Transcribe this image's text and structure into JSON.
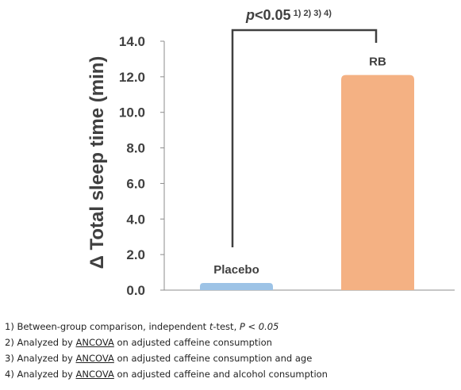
{
  "chart_data": {
    "type": "bar",
    "categories": [
      "Placebo",
      "RB"
    ],
    "values": [
      0.4,
      12.1
    ],
    "colors": [
      "#9dc3e6",
      "#f4b183"
    ],
    "ylabel": "Δ Total sleep time (min)",
    "ylim": [
      0.0,
      14.0
    ],
    "yticks": [
      "0.0",
      "2.0",
      "4.0",
      "6.0",
      "8.0",
      "10.0",
      "12.0",
      "14.0"
    ],
    "grid": false,
    "significance": {
      "prefix": "p",
      "text": "<0.05",
      "superscript": " 1) 2) 3) 4)"
    }
  },
  "footnotes": [
    {
      "num": "1)",
      "text1": "Between-group comparison, independent ",
      "t": "t",
      "text2": "-test, ",
      "pval": "P < 0.05"
    },
    {
      "num": "2)",
      "pre": "Analyzed by ",
      "abbr": "ANCOVA",
      "post": " on adjusted caffeine consumption"
    },
    {
      "num": "3)",
      "pre": "Analyzed by ",
      "abbr": "ANCOVA",
      "post": " on adjusted caffeine consumption and age"
    },
    {
      "num": "4)",
      "pre": "Analyzed by ",
      "abbr": "ANCOVA",
      "post": " on adjusted caffeine and alcohol consumption"
    }
  ]
}
